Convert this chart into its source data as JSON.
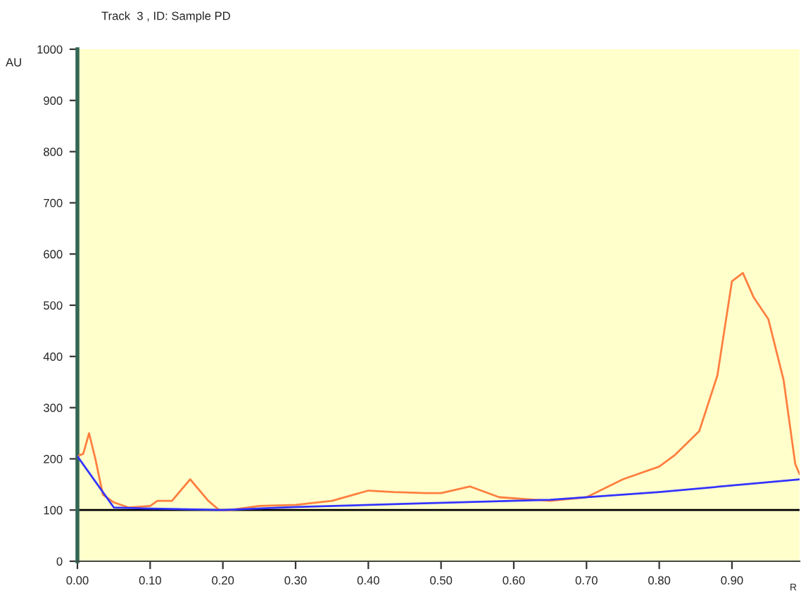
{
  "chart_data": {
    "type": "line",
    "title": "Track  3 , ID: Sample PD",
    "xlabel": "R",
    "ylabel": "AU",
    "series": [
      {
        "color": "#ff7f3f",
        "x": [
          0,
          0.008,
          0.016,
          0.025,
          0.035,
          0.05,
          0.07,
          0.1,
          0.11,
          0.13,
          0.155,
          0.18,
          0.195,
          0.21,
          0.25,
          0.3,
          0.35,
          0.38,
          0.4,
          0.435,
          0.48,
          0.5,
          0.54,
          0.58,
          0.65,
          0.7,
          0.75,
          0.8,
          0.822,
          0.855,
          0.88,
          0.9,
          0.915,
          0.93,
          0.95,
          0.971,
          0.987,
          0.993
        ],
        "values": [
          205,
          210,
          250,
          198,
          130,
          115,
          105,
          108,
          118,
          118,
          160,
          118,
          100,
          100,
          108,
          110,
          118,
          130,
          138,
          135,
          133,
          133,
          146,
          125,
          118,
          125,
          160,
          185,
          208,
          254,
          363,
          547,
          563,
          515,
          473,
          354,
          190,
          170
        ]
      },
      {
        "color": "#3333ff",
        "x": [
          0,
          0.05,
          0.1,
          0.2,
          0.3,
          0.45,
          0.65,
          0.8,
          0.993
        ],
        "values": [
          205,
          105,
          103,
          100,
          106,
          112,
          120,
          135,
          160
        ]
      }
    ],
    "xlim": [
      0,
      0.993
    ],
    "ylim": [
      0,
      1000
    ],
    "xticks": [
      {
        "value": 0,
        "label": "0.00"
      },
      {
        "value": 0.1,
        "label": "0.10"
      },
      {
        "value": 0.2,
        "label": "0.20"
      },
      {
        "value": 0.3,
        "label": "0.30"
      },
      {
        "value": 0.4,
        "label": "0.40"
      },
      {
        "value": 0.5,
        "label": "0.50"
      },
      {
        "value": 0.6,
        "label": "0.60"
      },
      {
        "value": 0.7,
        "label": "0.70"
      },
      {
        "value": 0.8,
        "label": "0.80"
      },
      {
        "value": 0.9,
        "label": "0.90"
      }
    ],
    "yticks": [
      0,
      100,
      200,
      300,
      400,
      500,
      600,
      700,
      800,
      900,
      1000
    ],
    "ref_lines": [
      {
        "axis": "y",
        "value": 100,
        "color": "#000000"
      }
    ],
    "grid": false,
    "legend": false
  }
}
